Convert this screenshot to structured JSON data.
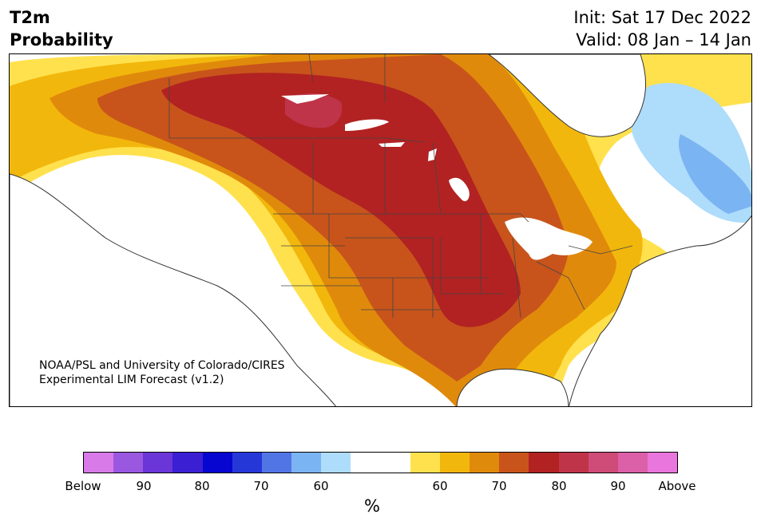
{
  "header": {
    "title_line1": "T2m",
    "title_line2": "Probability",
    "init": "Init: Sat 17 Dec 2022",
    "valid": "Valid: 08 Jan – 14 Jan"
  },
  "credit": {
    "line1": "NOAA/PSL and University of Colorado/CIRES",
    "line2": "Experimental LIM Forecast (v1.2)"
  },
  "colorbar": {
    "colors": [
      "#d87ae8",
      "#9a57e0",
      "#6a36d8",
      "#3b1fd2",
      "#0606d0",
      "#2637d8",
      "#5275e6",
      "#7bb4f2",
      "#aedcfb",
      "#ffffff",
      "#ffffff",
      "#ffe14d",
      "#f2b70c",
      "#e08a0c",
      "#c8541b",
      "#b22222",
      "#c0344a",
      "#cf4b78",
      "#db60a8",
      "#e876dc"
    ],
    "ticks": [
      "Below",
      "90",
      "80",
      "70",
      "60",
      "60",
      "70",
      "80",
      "90",
      "Above"
    ],
    "unit": "%"
  },
  "map": {
    "land_color": "#ffffff",
    "line_color": "#333333",
    "categories_present": [
      "60",
      "70",
      "80",
      "90",
      "Below 60",
      "Below 70"
    ]
  }
}
